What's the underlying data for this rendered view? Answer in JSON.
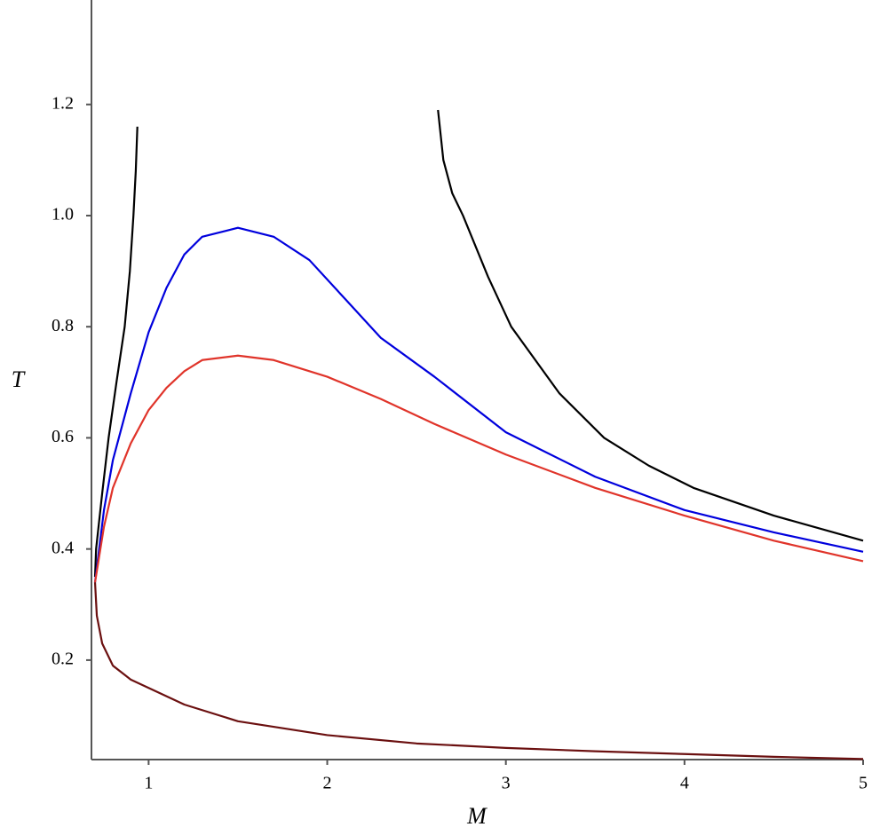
{
  "chart_data": {
    "type": "line",
    "x_label": "M",
    "y_label": "T",
    "xlim": [
      0.68,
      5
    ],
    "ylim": [
      0.021,
      1.388
    ],
    "xticks": [
      1,
      2,
      3,
      4,
      5
    ],
    "yticks": [
      0.2,
      0.4,
      0.6,
      0.8,
      {
        "value": 1,
        "label": "1.0"
      },
      1.2
    ],
    "grid": false,
    "series": [
      {
        "color": "#000000",
        "x": [
          0.7,
          0.706,
          0.74,
          0.776,
          0.82,
          0.866,
          0.895,
          0.915,
          0.928,
          0.937,
          null,
          2.62,
          2.65,
          2.7,
          2.76,
          2.9,
          3.03,
          3.3,
          3.55,
          3.8,
          4.05,
          4.5,
          5
        ],
        "values": [
          0.35,
          0.4,
          0.5,
          0.6,
          0.7,
          0.8,
          0.9,
          1.0,
          1.08,
          1.16,
          null,
          1.19,
          1.1,
          1.04,
          1.0,
          0.89,
          0.8,
          0.68,
          0.6,
          0.55,
          0.51,
          0.46,
          0.415
        ]
      },
      {
        "color": "#0000dd",
        "x": [
          0.7,
          0.75,
          0.8,
          0.9,
          1.0,
          1.1,
          1.2,
          1.3,
          1.5,
          1.7,
          1.9,
          2.1,
          2.3,
          2.6,
          3.0,
          3.5,
          4.0,
          4.5,
          5
        ],
        "values": [
          0.34,
          0.47,
          0.56,
          0.68,
          0.79,
          0.87,
          0.93,
          0.962,
          0.978,
          0.962,
          0.92,
          0.85,
          0.78,
          0.71,
          0.61,
          0.53,
          0.47,
          0.43,
          0.395
        ]
      },
      {
        "color": "#e0342a",
        "x": [
          0.7,
          0.75,
          0.8,
          0.9,
          1.0,
          1.1,
          1.2,
          1.3,
          1.5,
          1.7,
          2.0,
          2.3,
          2.6,
          3.0,
          3.5,
          4.0,
          4.5,
          5
        ],
        "values": [
          0.34,
          0.44,
          0.51,
          0.59,
          0.65,
          0.69,
          0.72,
          0.74,
          0.748,
          0.74,
          0.71,
          0.67,
          0.625,
          0.57,
          0.51,
          0.46,
          0.415,
          0.378
        ]
      },
      {
        "color": "#6b1010",
        "x": [
          0.7,
          0.71,
          0.74,
          0.8,
          0.9,
          1.0,
          1.2,
          1.5,
          2.0,
          2.5,
          3.0,
          3.5,
          4.0,
          4.5,
          5
        ],
        "values": [
          0.34,
          0.28,
          0.23,
          0.19,
          0.165,
          0.15,
          0.12,
          0.09,
          0.065,
          0.05,
          0.042,
          0.036,
          0.031,
          0.026,
          0.022
        ]
      }
    ]
  }
}
